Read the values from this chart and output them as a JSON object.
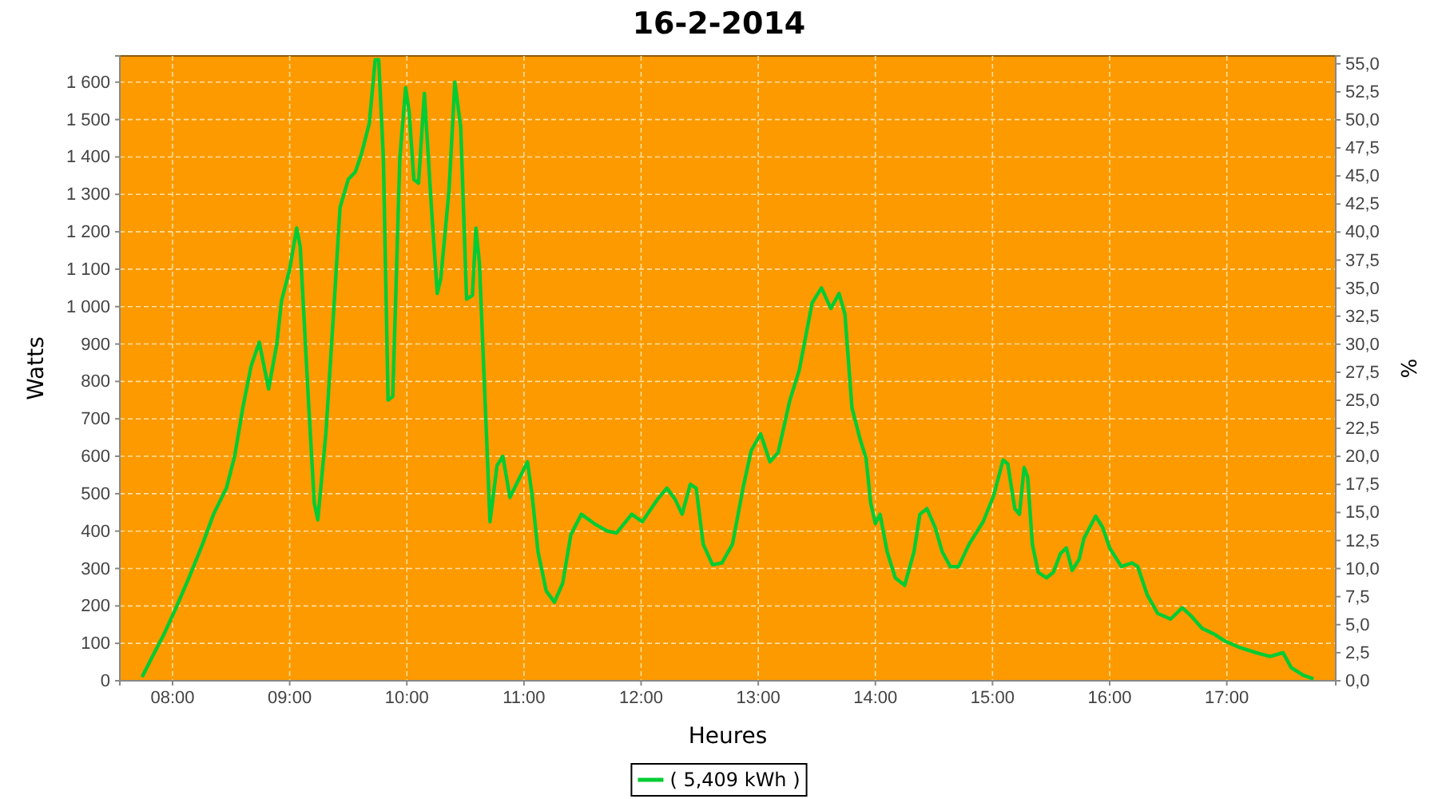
{
  "chart_data": {
    "type": "line",
    "title": "16-2-2014",
    "xlabel": "Heures",
    "ylabel": "Watts",
    "y2label": "%",
    "xlim": [
      7.55,
      17.93
    ],
    "ylim": [
      0,
      1670
    ],
    "y2lim": [
      0,
      55.7
    ],
    "xticks": [
      {
        "value": 8,
        "label": "08:00"
      },
      {
        "value": 9,
        "label": "09:00"
      },
      {
        "value": 10,
        "label": "10:00"
      },
      {
        "value": 11,
        "label": "11:00"
      },
      {
        "value": 12,
        "label": "12:00"
      },
      {
        "value": 13,
        "label": "13:00"
      },
      {
        "value": 14,
        "label": "14:00"
      },
      {
        "value": 15,
        "label": "15:00"
      },
      {
        "value": 16,
        "label": "16:00"
      },
      {
        "value": 17,
        "label": "17:00"
      }
    ],
    "yticks": [
      0,
      100,
      200,
      300,
      400,
      500,
      600,
      700,
      800,
      900,
      {
        "value": 1000,
        "label": "1 000"
      },
      {
        "value": 1100,
        "label": "1 100"
      },
      {
        "value": 1200,
        "label": "1 200"
      },
      {
        "value": 1300,
        "label": "1 300"
      },
      {
        "value": 1400,
        "label": "1 400"
      },
      {
        "value": 1500,
        "label": "1 500"
      },
      {
        "value": 1600,
        "label": "1 600"
      }
    ],
    "y2ticks": [
      {
        "value": 0,
        "label": "0,0"
      },
      {
        "value": 2.5,
        "label": "2,5"
      },
      {
        "value": 5,
        "label": "5,0"
      },
      {
        "value": 7.5,
        "label": "7,5"
      },
      {
        "value": 10,
        "label": "10,0"
      },
      {
        "value": 12.5,
        "label": "12,5"
      },
      {
        "value": 15,
        "label": "15,0"
      },
      {
        "value": 17.5,
        "label": "17,5"
      },
      {
        "value": 20,
        "label": "20,0"
      },
      {
        "value": 22.5,
        "label": "22,5"
      },
      {
        "value": 25,
        "label": "25,0"
      },
      {
        "value": 27.5,
        "label": "27,5"
      },
      {
        "value": 30,
        "label": "30,0"
      },
      {
        "value": 32.5,
        "label": "32,5"
      },
      {
        "value": 35,
        "label": "35,0"
      },
      {
        "value": 37.5,
        "label": "37,5"
      },
      {
        "value": 40,
        "label": "40,0"
      },
      {
        "value": 42.5,
        "label": "42,5"
      },
      {
        "value": 45,
        "label": "45,0"
      },
      {
        "value": 47.5,
        "label": "47,5"
      },
      {
        "value": 50,
        "label": "50,0"
      },
      {
        "value": 52.5,
        "label": "52,5"
      },
      {
        "value": 55,
        "label": "55,0"
      }
    ],
    "grid": true,
    "legend": "bottom",
    "marker": "none",
    "line_style": "solid",
    "series": [
      {
        "name": "( 5,409 kWh )",
        "color": "#00cc33",
        "x": [
          7.74,
          7.82,
          7.92,
          8.03,
          8.14,
          8.25,
          8.35,
          8.46,
          8.53,
          8.6,
          8.67,
          8.74,
          8.82,
          8.89,
          8.93,
          9.0,
          9.06,
          9.09,
          9.16,
          9.21,
          9.24,
          9.31,
          9.38,
          9.43,
          9.5,
          9.56,
          9.61,
          9.68,
          9.73,
          9.76,
          9.8,
          9.84,
          9.88,
          9.94,
          9.99,
          10.02,
          10.06,
          10.1,
          10.15,
          10.21,
          10.26,
          10.29,
          10.36,
          10.41,
          10.46,
          10.51,
          10.56,
          10.59,
          10.62,
          10.69,
          10.71,
          10.77,
          10.82,
          10.88,
          11.03,
          11.07,
          11.12,
          11.19,
          11.26,
          11.33,
          11.4,
          11.49,
          11.6,
          11.71,
          11.79,
          11.92,
          12.01,
          12.14,
          12.22,
          12.29,
          12.35,
          12.42,
          12.47,
          12.53,
          12.61,
          12.69,
          12.78,
          12.87,
          12.94,
          13.02,
          13.1,
          13.17,
          13.27,
          13.35,
          13.46,
          13.54,
          13.62,
          13.69,
          13.74,
          13.8,
          13.87,
          13.92,
          13.96,
          14.0,
          14.04,
          14.1,
          14.17,
          14.25,
          14.33,
          14.38,
          14.44,
          14.51,
          14.57,
          14.64,
          14.71,
          14.8,
          14.92,
          15.01,
          15.09,
          15.13,
          15.19,
          15.23,
          15.27,
          15.3,
          15.34,
          15.39,
          15.46,
          15.52,
          15.58,
          15.63,
          15.68,
          15.74,
          15.78,
          15.88,
          15.94,
          16.0,
          16.1,
          16.19,
          16.24,
          16.32,
          16.41,
          16.52,
          16.62,
          16.69,
          16.79,
          16.89,
          16.99,
          17.1,
          17.25,
          17.37,
          17.48,
          17.55,
          17.65,
          17.74
        ],
        "values": [
          10,
          60,
          120,
          195,
          275,
          360,
          445,
          515,
          600,
          730,
          840,
          905,
          780,
          900,
          1015,
          1100,
          1210,
          1160,
          750,
          475,
          430,
          665,
          1010,
          1265,
          1340,
          1360,
          1405,
          1490,
          1660,
          1660,
          1395,
          750,
          760,
          1395,
          1585,
          1520,
          1340,
          1330,
          1570,
          1265,
          1035,
          1075,
          1310,
          1600,
          1480,
          1020,
          1030,
          1210,
          1115,
          580,
          425,
          575,
          600,
          490,
          585,
          495,
          345,
          240,
          210,
          260,
          390,
          445,
          420,
          400,
          395,
          445,
          425,
          485,
          515,
          485,
          445,
          525,
          515,
          365,
          310,
          315,
          365,
          515,
          615,
          660,
          585,
          610,
          750,
          830,
          1010,
          1050,
          995,
          1035,
          980,
          730,
          645,
          595,
          475,
          420,
          445,
          345,
          275,
          255,
          345,
          445,
          460,
          410,
          345,
          305,
          305,
          365,
          425,
          495,
          590,
          580,
          460,
          445,
          570,
          545,
          365,
          290,
          275,
          290,
          340,
          355,
          295,
          325,
          380,
          440,
          410,
          355,
          305,
          315,
          305,
          230,
          180,
          165,
          195,
          175,
          140,
          125,
          105,
          90,
          75,
          65,
          75,
          35,
          15,
          5
        ]
      }
    ]
  }
}
